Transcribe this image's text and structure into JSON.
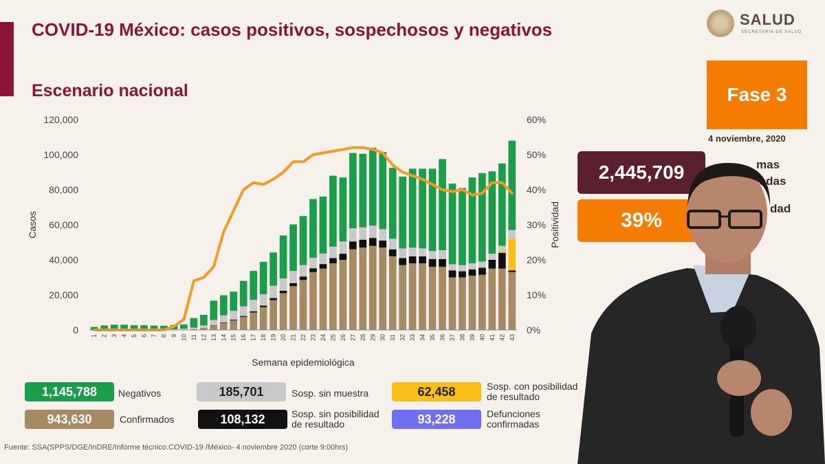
{
  "header": {
    "title": "COVID-19 México: casos positivos, sospechosos y negativos",
    "subtitle": "Escenario nacional",
    "logo_name": "SALUD",
    "logo_sub": "SECRETARÍA DE SALUD"
  },
  "side": {
    "phase": "Fase 3",
    "date": "4 noviembre, 2020",
    "kpi_total": "2,445,709",
    "kpi_total_label": [
      "mas",
      "ladas"
    ],
    "kpi_positivity": "39%",
    "kpi_positivity_label": "dad"
  },
  "legend": [
    {
      "value": "1,145,788",
      "label": "Negativos",
      "color": "#1a9e4b",
      "text_color": "#ffffff"
    },
    {
      "value": "185,701",
      "label": "Sosp. sin muestra",
      "color": "#c9c9c9",
      "text_color": "#222222"
    },
    {
      "value": "62,458",
      "label": "Sosp. con posibilidad de resultado",
      "color": "#f9bf16",
      "text_color": "#222222"
    },
    {
      "value": "943,630",
      "label": "Confirmados",
      "color": "#a58a63",
      "text_color": "#ffffff"
    },
    {
      "value": "108,132",
      "label": "Sosp. sin posibilidad de resultado",
      "color": "#111111",
      "text_color": "#ffffff"
    },
    {
      "value": "93,228",
      "label": "Defunciones confirmadas",
      "color": "#6f6ff0",
      "text_color": "#ffffff"
    }
  ],
  "source": "Fuente: SSA(SPPS/DGE/InDRE/Informe técnico.COVID-19 /México- 4 noviembre 2020 (corte 9:00hrs)",
  "chart_data": {
    "type": "bar",
    "stacked": true,
    "xlabel": "Semana epidemiológica",
    "ylabel": "Casos",
    "y2label": "Positividad",
    "ylim": [
      0,
      120000
    ],
    "y2lim": [
      0,
      60
    ],
    "yticks": [
      "0",
      "20,000",
      "40,000",
      "60,000",
      "80,000",
      "100,000",
      "120,000"
    ],
    "y2ticks": [
      "0%",
      "10%",
      "20%",
      "30%",
      "40%",
      "50%",
      "60%"
    ],
    "categories": [
      "1",
      "2",
      "3",
      "4",
      "5",
      "6",
      "7",
      "8",
      "9",
      "10",
      "11",
      "12",
      "13",
      "14",
      "15",
      "16",
      "17",
      "18",
      "19",
      "20",
      "21",
      "22",
      "23",
      "24",
      "25",
      "26",
      "27",
      "28",
      "29",
      "30",
      "31",
      "32",
      "33",
      "34",
      "35",
      "36",
      "37",
      "38",
      "39",
      "40",
      "41",
      "42",
      "43"
    ],
    "series": [
      {
        "name": "Confirmados",
        "color": "#a58a63",
        "values": [
          0,
          0,
          0,
          0,
          0,
          0,
          0,
          0,
          0,
          200,
          500,
          1000,
          2500,
          4000,
          5500,
          7500,
          10000,
          13000,
          17000,
          21000,
          25000,
          28500,
          33000,
          35000,
          38000,
          40000,
          46000,
          47000,
          48000,
          47000,
          42000,
          37000,
          38000,
          38000,
          36000,
          36000,
          30000,
          30000,
          31000,
          31500,
          35000,
          35000,
          33000
        ]
      },
      {
        "name": "Sosp. sin posibilidad de resultado",
        "color": "#111111",
        "values": [
          0,
          0,
          0,
          0,
          0,
          0,
          0,
          0,
          0,
          0,
          0,
          100,
          200,
          300,
          400,
          500,
          700,
          900,
          1200,
          1400,
          1700,
          2000,
          2200,
          2600,
          3000,
          3500,
          4500,
          4500,
          4500,
          4000,
          4000,
          4000,
          4000,
          4000,
          4500,
          4500,
          4000,
          3500,
          3500,
          4000,
          5000,
          9000,
          1000
        ]
      },
      {
        "name": "Sosp. con posibilidad de resultado",
        "color": "#f9bf16",
        "values": [
          0,
          0,
          0,
          0,
          0,
          0,
          0,
          0,
          0,
          0,
          0,
          0,
          0,
          0,
          0,
          0,
          0,
          0,
          0,
          0,
          0,
          0,
          0,
          0,
          0,
          0,
          0,
          0,
          0,
          0,
          0,
          0,
          0,
          0,
          0,
          0,
          0,
          0,
          0,
          0,
          0,
          1000,
          18000
        ]
      },
      {
        "name": "Sosp. sin muestra",
        "color": "#c9c9c9",
        "values": [
          200,
          300,
          400,
          400,
          400,
          400,
          400,
          400,
          400,
          500,
          800,
          1500,
          3000,
          4000,
          5000,
          5500,
          6500,
          6500,
          7000,
          7000,
          7000,
          6500,
          6000,
          6000,
          6500,
          7000,
          7500,
          7000,
          7000,
          6500,
          6000,
          5500,
          5000,
          4500,
          4500,
          5000,
          3500,
          3500,
          3500,
          3500,
          3500,
          3000,
          5000
        ]
      },
      {
        "name": "Negativos",
        "color": "#1a9e4b",
        "values": [
          1500,
          2300,
          2600,
          2600,
          2300,
          2300,
          2100,
          2000,
          2400,
          2500,
          5500,
          6000,
          11000,
          11500,
          11000,
          14500,
          16500,
          18500,
          19000,
          24500,
          26500,
          28000,
          33500,
          32500,
          40500,
          36500,
          43000,
          42000,
          44500,
          44000,
          40500,
          41000,
          45000,
          45500,
          47000,
          52000,
          46000,
          44000,
          49000,
          50500,
          47000,
          47000,
          51000
        ]
      }
    ],
    "line": {
      "name": "Positividad",
      "color": "#f39c24",
      "values": [
        0,
        0,
        0,
        0,
        0,
        0,
        0,
        0,
        1,
        3,
        14,
        15,
        18,
        28,
        34,
        40,
        42,
        41.5,
        43,
        45,
        48,
        48,
        50,
        50.5,
        51,
        51.5,
        52,
        52,
        51.5,
        50.5,
        47,
        45,
        44,
        43,
        41.5,
        40,
        39.5,
        40,
        38.5,
        39,
        42,
        42,
        39
      ]
    }
  }
}
